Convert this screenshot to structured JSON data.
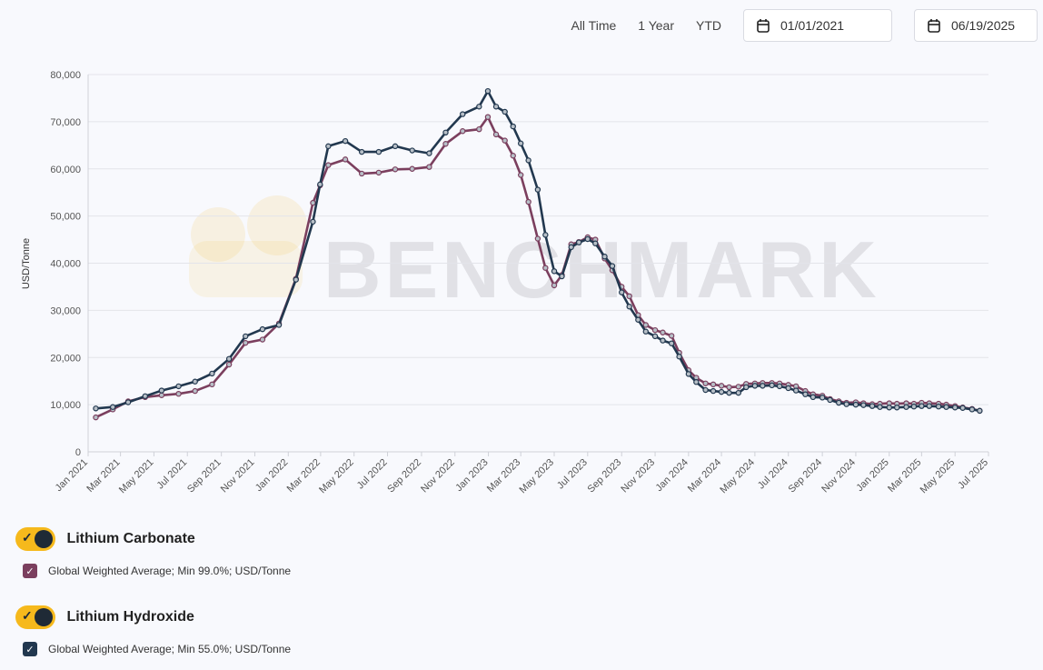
{
  "controls": {
    "all_time": "All Time",
    "one_year": "1 Year",
    "ytd": "YTD",
    "start_date": "01/01/2021",
    "end_date": "06/19/2025"
  },
  "watermark": "BENCHMARK",
  "legend": [
    {
      "group": "Lithium Carbonate",
      "series": "Global Weighted Average; Min 99.0%; USD/Tonne",
      "color": "#7b3f5e"
    },
    {
      "group": "Lithium Hydroxide",
      "series": "Global Weighted Average; Min 55.0%; USD/Tonne",
      "color": "#22384f"
    }
  ],
  "colors": {
    "accent": "#f6b91c",
    "carbonate": "#7b3f5e",
    "hydroxide": "#22384f"
  },
  "chart_data": {
    "type": "line",
    "ylabel": "USD/Tonne",
    "xlabel": "",
    "ylim": [
      0,
      80000
    ],
    "yticks": [
      "0",
      "10,000",
      "20,000",
      "30,000",
      "40,000",
      "50,000",
      "60,000",
      "70,000",
      "80,000"
    ],
    "xlim": [
      "2021-01",
      "2025-07"
    ],
    "xticks": [
      "Jan 2021",
      "Mar 2021",
      "May 2021",
      "Jul 2021",
      "Sep 2021",
      "Nov 2021",
      "Jan 2022",
      "Mar 2022",
      "May 2022",
      "Jul 2022",
      "Sep 2022",
      "Nov 2022",
      "Jan 2023",
      "Mar 2023",
      "May 2023",
      "Jul 2023",
      "Sep 2023",
      "Nov 2023",
      "Jan 2024",
      "Mar 2024",
      "May 2024",
      "Jul 2024",
      "Sep 2024",
      "Nov 2024",
      "Jan 2025",
      "Mar 2025",
      "May 2025",
      "Jul 2025"
    ],
    "grid": true,
    "series": [
      {
        "name": "Lithium Carbonate",
        "color": "#7b3f5e",
        "points": [
          [
            "2021-01-15",
            7300
          ],
          [
            "2021-02-15",
            9000
          ],
          [
            "2021-03-15",
            10700
          ],
          [
            "2021-04-15",
            11600
          ],
          [
            "2021-05-15",
            12000
          ],
          [
            "2021-06-15",
            12300
          ],
          [
            "2021-07-15",
            12900
          ],
          [
            "2021-08-15",
            14300
          ],
          [
            "2021-09-15",
            18500
          ],
          [
            "2021-10-15",
            23100
          ],
          [
            "2021-11-15",
            23800
          ],
          [
            "2021-12-15",
            27200
          ],
          [
            "2022-01-15",
            36700
          ],
          [
            "2022-02-15",
            52800
          ],
          [
            "2022-02-28",
            56500
          ],
          [
            "2022-03-15",
            60800
          ],
          [
            "2022-04-15",
            62000
          ],
          [
            "2022-05-15",
            59000
          ],
          [
            "2022-06-15",
            59200
          ],
          [
            "2022-07-15",
            59900
          ],
          [
            "2022-08-15",
            60000
          ],
          [
            "2022-09-15",
            60400
          ],
          [
            "2022-10-15",
            65300
          ],
          [
            "2022-11-15",
            68000
          ],
          [
            "2022-12-15",
            68400
          ],
          [
            "2022-12-31",
            71000
          ],
          [
            "2023-01-15",
            67300
          ],
          [
            "2023-01-31",
            66000
          ],
          [
            "2023-02-15",
            62800
          ],
          [
            "2023-03-01",
            58700
          ],
          [
            "2023-03-15",
            53000
          ],
          [
            "2023-04-01",
            45200
          ],
          [
            "2023-04-15",
            39000
          ],
          [
            "2023-05-01",
            35300
          ],
          [
            "2023-05-15",
            37500
          ],
          [
            "2023-06-01",
            44000
          ],
          [
            "2023-06-15",
            44500
          ],
          [
            "2023-07-01",
            45500
          ],
          [
            "2023-07-15",
            45000
          ],
          [
            "2023-08-01",
            41000
          ],
          [
            "2023-08-15",
            38500
          ],
          [
            "2023-09-01",
            35000
          ],
          [
            "2023-09-15",
            33000
          ],
          [
            "2023-10-01",
            29000
          ],
          [
            "2023-10-15",
            26900
          ],
          [
            "2023-11-01",
            25800
          ],
          [
            "2023-11-15",
            25300
          ],
          [
            "2023-12-01",
            24600
          ],
          [
            "2023-12-15",
            21000
          ],
          [
            "2024-01-01",
            17300
          ],
          [
            "2024-01-15",
            15700
          ],
          [
            "2024-02-01",
            14500
          ],
          [
            "2024-02-15",
            14300
          ],
          [
            "2024-03-01",
            14000
          ],
          [
            "2024-03-15",
            13700
          ],
          [
            "2024-04-01",
            13800
          ],
          [
            "2024-04-15",
            14400
          ],
          [
            "2024-05-01",
            14500
          ],
          [
            "2024-05-15",
            14600
          ],
          [
            "2024-06-01",
            14600
          ],
          [
            "2024-06-15",
            14500
          ],
          [
            "2024-07-01",
            14200
          ],
          [
            "2024-07-15",
            13900
          ],
          [
            "2024-08-01",
            12900
          ],
          [
            "2024-08-15",
            12200
          ],
          [
            "2024-09-01",
            11900
          ],
          [
            "2024-09-15",
            11200
          ],
          [
            "2024-10-01",
            10700
          ],
          [
            "2024-10-15",
            10400
          ],
          [
            "2024-11-01",
            10500
          ],
          [
            "2024-11-15",
            10300
          ],
          [
            "2024-12-01",
            10100
          ],
          [
            "2024-12-15",
            10200
          ],
          [
            "2025-01-01",
            10300
          ],
          [
            "2025-01-15",
            10200
          ],
          [
            "2025-02-01",
            10300
          ],
          [
            "2025-02-15",
            10200
          ],
          [
            "2025-03-01",
            10400
          ],
          [
            "2025-03-15",
            10300
          ],
          [
            "2025-04-01",
            10200
          ],
          [
            "2025-04-15",
            10000
          ],
          [
            "2025-05-01",
            9700
          ],
          [
            "2025-05-15",
            9400
          ],
          [
            "2025-06-01",
            9100
          ],
          [
            "2025-06-15",
            8700
          ]
        ]
      },
      {
        "name": "Lithium Hydroxide",
        "color": "#22384f",
        "points": [
          [
            "2021-01-15",
            9200
          ],
          [
            "2021-02-15",
            9500
          ],
          [
            "2021-03-15",
            10500
          ],
          [
            "2021-04-15",
            11800
          ],
          [
            "2021-05-15",
            13000
          ],
          [
            "2021-06-15",
            13900
          ],
          [
            "2021-07-15",
            14900
          ],
          [
            "2021-08-15",
            16600
          ],
          [
            "2021-09-15",
            19700
          ],
          [
            "2021-10-15",
            24500
          ],
          [
            "2021-11-15",
            26000
          ],
          [
            "2021-12-15",
            26900
          ],
          [
            "2022-01-15",
            36500
          ],
          [
            "2022-02-15",
            48800
          ],
          [
            "2022-02-28",
            56700
          ],
          [
            "2022-03-15",
            64800
          ],
          [
            "2022-04-15",
            65900
          ],
          [
            "2022-05-15",
            63600
          ],
          [
            "2022-06-15",
            63600
          ],
          [
            "2022-07-15",
            64800
          ],
          [
            "2022-08-15",
            63900
          ],
          [
            "2022-09-15",
            63300
          ],
          [
            "2022-10-15",
            67700
          ],
          [
            "2022-11-15",
            71600
          ],
          [
            "2022-12-15",
            73200
          ],
          [
            "2022-12-31",
            76500
          ],
          [
            "2023-01-15",
            73200
          ],
          [
            "2023-01-31",
            72100
          ],
          [
            "2023-02-15",
            69000
          ],
          [
            "2023-03-01",
            65400
          ],
          [
            "2023-03-15",
            61800
          ],
          [
            "2023-04-01",
            55600
          ],
          [
            "2023-04-15",
            46000
          ],
          [
            "2023-05-01",
            38300
          ],
          [
            "2023-05-15",
            37200
          ],
          [
            "2023-06-01",
            43400
          ],
          [
            "2023-06-15",
            44400
          ],
          [
            "2023-07-01",
            45100
          ],
          [
            "2023-07-15",
            44200
          ],
          [
            "2023-08-01",
            41400
          ],
          [
            "2023-08-15",
            39400
          ],
          [
            "2023-09-01",
            33800
          ],
          [
            "2023-09-15",
            30800
          ],
          [
            "2023-10-01",
            28000
          ],
          [
            "2023-10-15",
            25500
          ],
          [
            "2023-11-01",
            24500
          ],
          [
            "2023-11-15",
            23600
          ],
          [
            "2023-12-01",
            23000
          ],
          [
            "2023-12-15",
            20200
          ],
          [
            "2024-01-01",
            16500
          ],
          [
            "2024-01-15",
            14800
          ],
          [
            "2024-02-01",
            13100
          ],
          [
            "2024-02-15",
            12900
          ],
          [
            "2024-03-01",
            12700
          ],
          [
            "2024-03-15",
            12500
          ],
          [
            "2024-04-01",
            12500
          ],
          [
            "2024-04-15",
            13700
          ],
          [
            "2024-05-01",
            14000
          ],
          [
            "2024-05-15",
            14000
          ],
          [
            "2024-06-01",
            14100
          ],
          [
            "2024-06-15",
            13900
          ],
          [
            "2024-07-01",
            13500
          ],
          [
            "2024-07-15",
            13000
          ],
          [
            "2024-08-01",
            12200
          ],
          [
            "2024-08-15",
            11600
          ],
          [
            "2024-09-01",
            11500
          ],
          [
            "2024-09-15",
            11000
          ],
          [
            "2024-10-01",
            10400
          ],
          [
            "2024-10-15",
            10100
          ],
          [
            "2024-11-01",
            10000
          ],
          [
            "2024-11-15",
            9900
          ],
          [
            "2024-12-01",
            9700
          ],
          [
            "2024-12-15",
            9500
          ],
          [
            "2025-01-01",
            9400
          ],
          [
            "2025-01-15",
            9400
          ],
          [
            "2025-02-01",
            9500
          ],
          [
            "2025-02-15",
            9600
          ],
          [
            "2025-03-01",
            9700
          ],
          [
            "2025-03-15",
            9700
          ],
          [
            "2025-04-01",
            9600
          ],
          [
            "2025-04-15",
            9500
          ],
          [
            "2025-05-01",
            9400
          ],
          [
            "2025-05-15",
            9300
          ],
          [
            "2025-06-01",
            9000
          ],
          [
            "2025-06-15",
            8700
          ]
        ]
      }
    ]
  }
}
